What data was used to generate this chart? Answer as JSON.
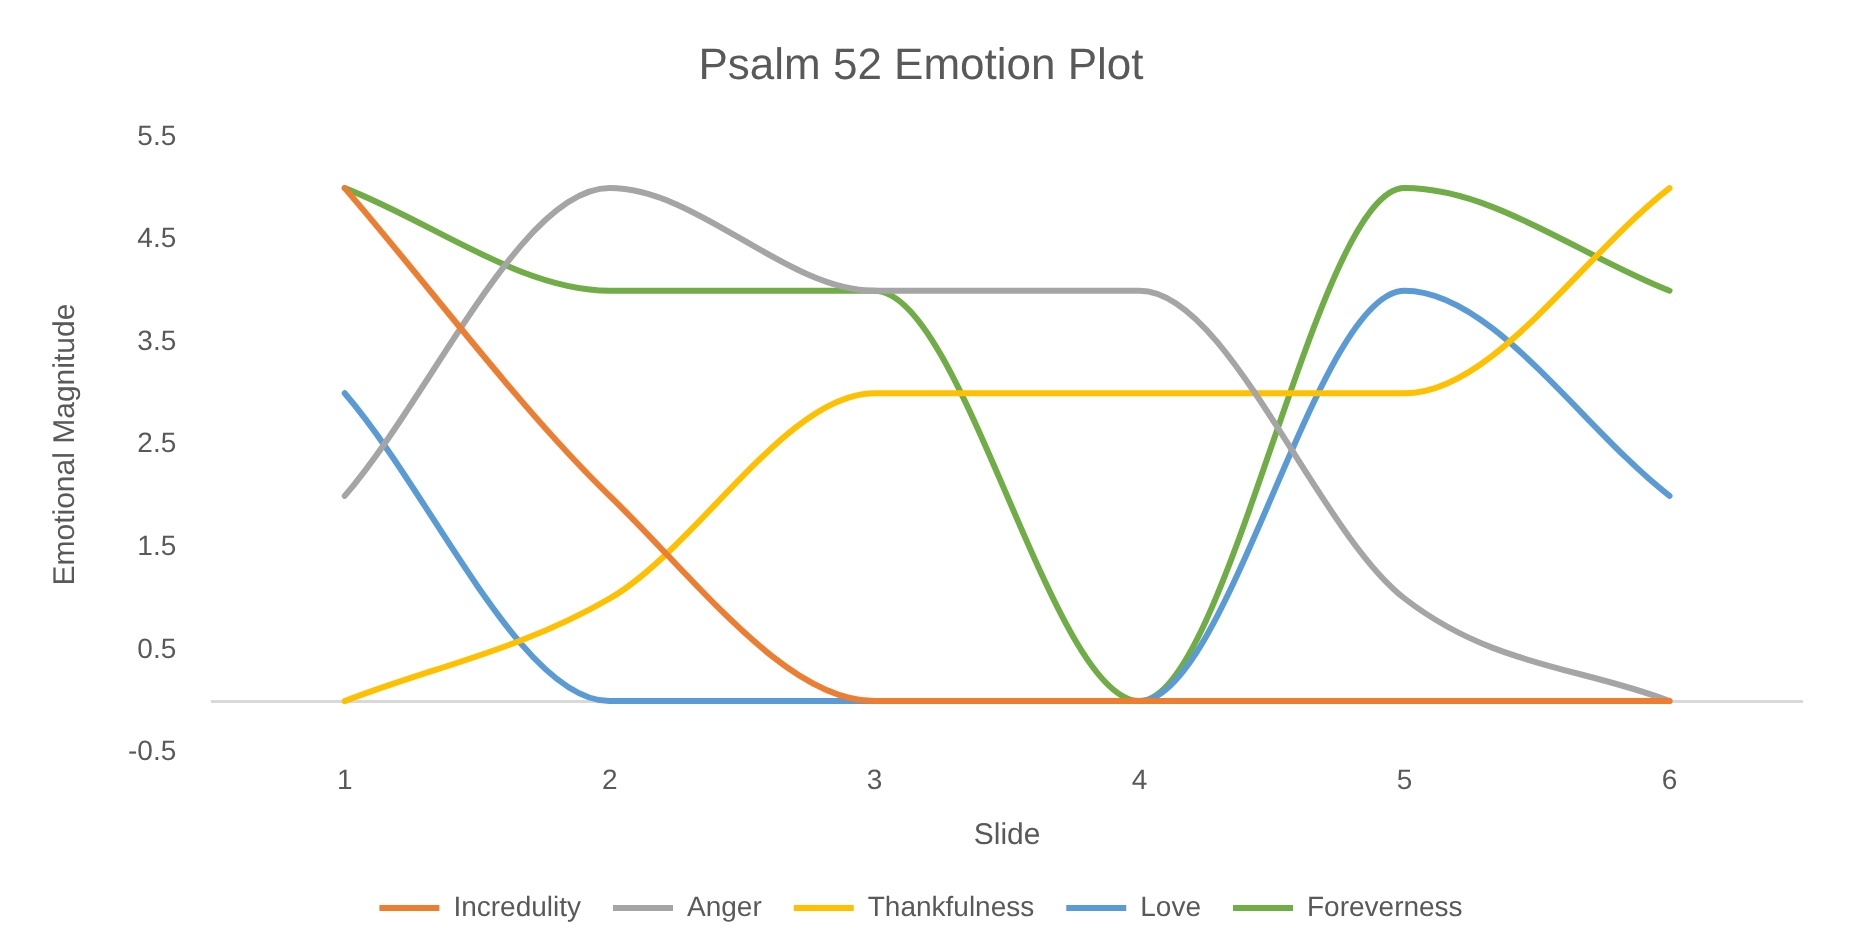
{
  "chart_data": {
    "type": "line",
    "title": "Psalm 52 Emotion Plot",
    "xlabel": "Slide",
    "ylabel": "Emotional Magnitude",
    "categories": [
      "1",
      "2",
      "3",
      "4",
      "5",
      "6"
    ],
    "series": [
      {
        "name": "Incredulity",
        "color": "#ed7d31",
        "values": [
          5,
          2,
          0,
          0,
          0,
          0
        ]
      },
      {
        "name": "Anger",
        "color": "#a5a5a5",
        "values": [
          2,
          5,
          4,
          4,
          1,
          0
        ]
      },
      {
        "name": "Thankfulness",
        "color": "#ffc000",
        "values": [
          0,
          1,
          3,
          3,
          3,
          5
        ]
      },
      {
        "name": "Love",
        "color": "#5b9bd5",
        "values": [
          3,
          0,
          0,
          0,
          4,
          2
        ]
      },
      {
        "name": "Foreverness",
        "color": "#70ad47",
        "values": [
          5,
          4,
          4,
          0,
          5,
          4
        ]
      }
    ],
    "ylim": [
      -0.5,
      5.5
    ],
    "yticks": [
      -0.5,
      0.5,
      1.5,
      2.5,
      3.5,
      4.5,
      5.5
    ],
    "grid": false,
    "legend": "bottom",
    "marker": "none",
    "line_style": "solid"
  }
}
